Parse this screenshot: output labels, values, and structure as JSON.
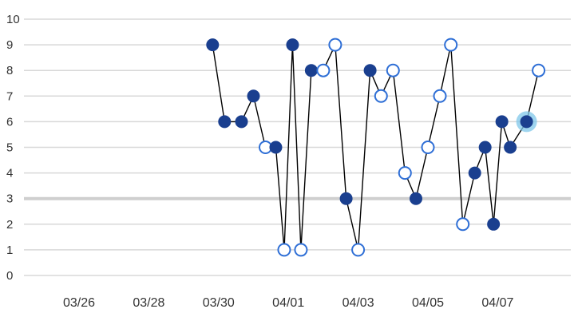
{
  "chart_data": {
    "type": "scatter",
    "title": "",
    "xlabel": "",
    "ylabel": "",
    "ylim": [
      0,
      10
    ],
    "y_ticks": [
      "0",
      "1",
      "2",
      "3",
      "4",
      "5",
      "6",
      "7",
      "8",
      "9",
      "10"
    ],
    "x_ticks": [
      "03/26",
      "03/28",
      "03/30",
      "04/01",
      "04/03",
      "04/05",
      "04/07"
    ],
    "grid": true,
    "legend": "none",
    "connecting_line": true,
    "highlighted_point_index": 30,
    "colors": {
      "filled": "#1a3f8f",
      "hollow_stroke": "#2f6fd6",
      "hollow_fill": "#ffffff",
      "line": "#000000",
      "grid": "#d8d8d8",
      "highlight_halo": "#7fc7ea"
    },
    "points": [
      {
        "x": "03/30",
        "y": 9,
        "style": "filled"
      },
      {
        "x": "03/30",
        "y": 6,
        "style": "filled"
      },
      {
        "x": "03/31",
        "y": 6,
        "style": "filled"
      },
      {
        "x": "03/31",
        "y": 7,
        "style": "filled"
      },
      {
        "x": "03/31",
        "y": 5,
        "style": "hollow"
      },
      {
        "x": "04/01",
        "y": 5,
        "style": "filled"
      },
      {
        "x": "04/01",
        "y": 1,
        "style": "hollow"
      },
      {
        "x": "04/01",
        "y": 9,
        "style": "filled"
      },
      {
        "x": "04/01",
        "y": 1,
        "style": "hollow"
      },
      {
        "x": "04/02",
        "y": 8,
        "style": "filled"
      },
      {
        "x": "04/02",
        "y": 8,
        "style": "hollow"
      },
      {
        "x": "04/02",
        "y": 9,
        "style": "hollow"
      },
      {
        "x": "04/03",
        "y": 3,
        "style": "filled"
      },
      {
        "x": "04/03",
        "y": 1,
        "style": "hollow"
      },
      {
        "x": "04/03",
        "y": 8,
        "style": "filled"
      },
      {
        "x": "04/04",
        "y": 7,
        "style": "hollow"
      },
      {
        "x": "04/04",
        "y": 8,
        "style": "hollow"
      },
      {
        "x": "04/04",
        "y": 4,
        "style": "hollow"
      },
      {
        "x": "04/05",
        "y": 3,
        "style": "filled"
      },
      {
        "x": "04/05",
        "y": 5,
        "style": "hollow"
      },
      {
        "x": "04/05",
        "y": 7,
        "style": "hollow"
      },
      {
        "x": "04/06",
        "y": 9,
        "style": "hollow"
      },
      {
        "x": "04/06",
        "y": 2,
        "style": "hollow"
      },
      {
        "x": "04/06",
        "y": 4,
        "style": "filled"
      },
      {
        "x": "04/07",
        "y": 5,
        "style": "filled"
      },
      {
        "x": "04/07",
        "y": 2,
        "style": "filled"
      },
      {
        "x": "04/07",
        "y": 6,
        "style": "filled"
      },
      {
        "x": "04/07",
        "y": 5,
        "style": "filled"
      },
      {
        "x": "04/08",
        "y": 6,
        "style": "filled"
      },
      {
        "x": "04/08",
        "y": 8,
        "style": "hollow"
      }
    ]
  }
}
